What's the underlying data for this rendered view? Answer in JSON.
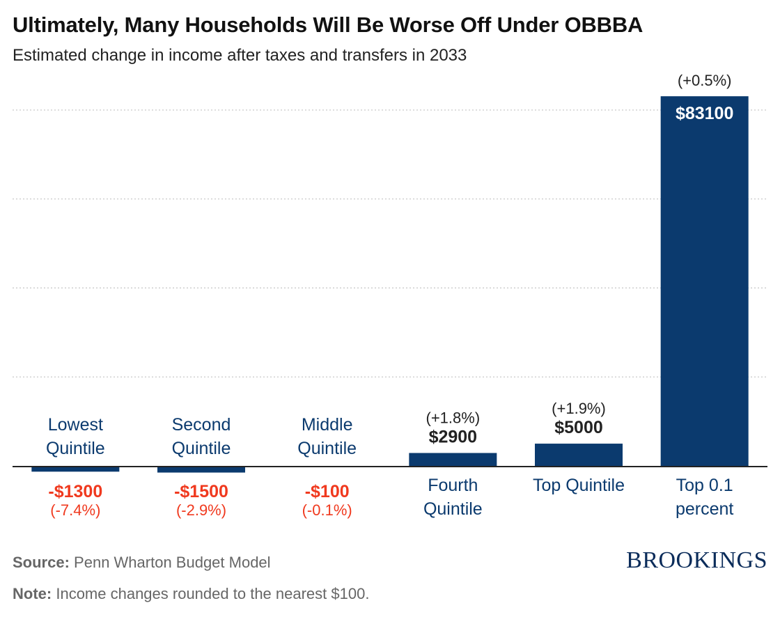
{
  "header": {
    "title": "Ultimately, Many Households Will Be Worse Off Under OBBBA",
    "subtitle": "Estimated change in income after taxes and transfers in 2033"
  },
  "chart_data": {
    "type": "bar",
    "title": "Ultimately, Many Households Will Be Worse Off Under OBBBA",
    "subtitle": "Estimated change in income after taxes and transfers in 2033",
    "xlabel": "",
    "ylabel": "",
    "categories": [
      [
        "Lowest",
        "Quintile"
      ],
      [
        "Second",
        "Quintile"
      ],
      [
        "Middle",
        "Quintile"
      ],
      [
        "Fourth",
        "Quintile"
      ],
      [
        "Top Quintile"
      ],
      [
        "Top 0.1",
        "percent"
      ]
    ],
    "values": [
      -1300,
      -1500,
      -100,
      2900,
      5000,
      83100
    ],
    "value_labels": [
      "-$1300",
      "-$1500",
      "-$100",
      "$2900",
      "$5000",
      "$83100"
    ],
    "pct_labels": [
      "(-7.4%)",
      "(-2.9%)",
      "(-0.1%)",
      "(+1.8%)",
      "(+1.9%)",
      "(+0.5%)"
    ],
    "ylim": [
      -2000,
      80000
    ],
    "grid": true,
    "legend": "none",
    "colors": {
      "bar": "#0b3a6e",
      "negative_text": "#f0391e",
      "label_text": "#0b3a6e",
      "value_text": "#222222",
      "value_inside": "#ffffff"
    }
  },
  "footer": {
    "source_label": "Source:",
    "source_text": "Penn Wharton Budget Model",
    "note_label": "Note:",
    "note_text": "Income changes rounded to the nearest $100.",
    "logo_text": "BROOKINGS"
  }
}
